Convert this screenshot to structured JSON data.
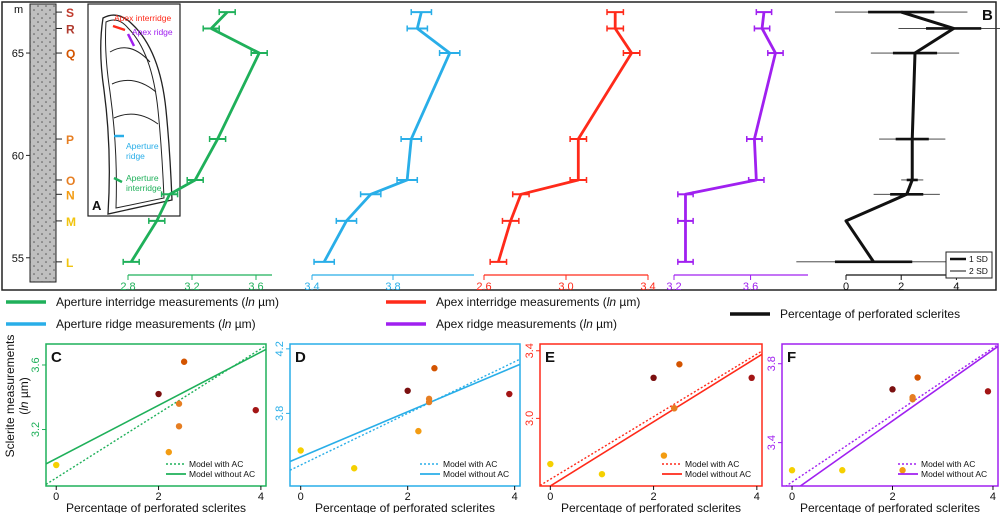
{
  "figure": {
    "panel_letters": {
      "A": "A",
      "B": "B",
      "C": "C",
      "D": "D",
      "E": "E",
      "F": "F"
    }
  },
  "strat": {
    "unit_label": "m",
    "height_ticks": [
      55,
      60,
      65
    ],
    "beds": [
      {
        "label": "S",
        "height": 67.0,
        "color": "#c0392b"
      },
      {
        "label": "R",
        "height": 66.2,
        "color": "#b03a2e"
      },
      {
        "label": "Q",
        "height": 65.0,
        "color": "#d35400"
      },
      {
        "label": "P",
        "height": 60.8,
        "color": "#e67e22"
      },
      {
        "label": "O",
        "height": 58.8,
        "color": "#e67e22"
      },
      {
        "label": "N",
        "height": 58.1,
        "color": "#f39c12"
      },
      {
        "label": "M",
        "height": 56.8,
        "color": "#f1c40f"
      },
      {
        "label": "L",
        "height": 54.8,
        "color": "#f1c40f"
      }
    ]
  },
  "panel_a": {
    "labels": {
      "apex_interridge": "Apex interridge",
      "apex_ridge": "Apex ridge",
      "aperture_ridge": "Aperture ridge",
      "aperture_interridge": "Aperture interridge"
    },
    "colors": {
      "apex_interridge": "#ff2a1a",
      "apex_ridge": "#a020f0",
      "aperture_ridge": "#29aee8",
      "aperture_interridge": "#1fb05a"
    }
  },
  "chart_data": [
    {
      "type": "line",
      "name": "Aperture interridge measurements",
      "color": "#1fb05a",
      "xlim": [
        2.8,
        3.7
      ],
      "xticks": [
        2.8,
        3.2,
        3.6
      ],
      "heights": [
        67.0,
        66.2,
        65.0,
        60.8,
        58.8,
        58.1,
        56.8,
        54.8
      ],
      "values": [
        3.42,
        3.32,
        3.62,
        3.36,
        3.22,
        3.06,
        2.98,
        2.82
      ],
      "errors": [
        0.05,
        0.05,
        0.05,
        0.05,
        0.05,
        0.05,
        0.05,
        0.05
      ]
    },
    {
      "type": "line",
      "name": "Aperture ridge measurements",
      "color": "#29aee8",
      "xlim": [
        3.4,
        4.2
      ],
      "xticks": [
        3.4,
        3.8
      ],
      "heights": [
        67.0,
        66.2,
        65.0,
        60.8,
        58.8,
        58.1,
        56.8,
        54.8
      ],
      "values": [
        3.94,
        3.92,
        4.08,
        3.89,
        3.87,
        3.69,
        3.57,
        3.46
      ],
      "errors": [
        0.05,
        0.05,
        0.05,
        0.05,
        0.05,
        0.05,
        0.05,
        0.05
      ]
    },
    {
      "type": "line",
      "name": "Apex interridge measurements",
      "color": "#ff2a1a",
      "xlim": [
        2.6,
        3.4
      ],
      "xticks": [
        2.6,
        3.0,
        3.4
      ],
      "heights": [
        67.0,
        66.2,
        65.0,
        60.8,
        58.8,
        58.1,
        56.8,
        54.8
      ],
      "values": [
        3.24,
        3.24,
        3.32,
        3.06,
        3.06,
        2.78,
        2.73,
        2.67
      ],
      "errors": [
        0.04,
        0.04,
        0.04,
        0.04,
        0.04,
        0.04,
        0.04,
        0.04
      ]
    },
    {
      "type": "line",
      "name": "Apex ridge measurements",
      "color": "#a020f0",
      "xlim": [
        3.2,
        3.9
      ],
      "xticks": [
        3.2,
        3.6
      ],
      "heights": [
        67.0,
        66.2,
        65.0,
        60.8,
        58.8,
        58.1,
        56.8,
        54.8
      ],
      "values": [
        3.67,
        3.66,
        3.73,
        3.62,
        3.63,
        3.26,
        3.26,
        3.26
      ],
      "errors": [
        0.04,
        0.04,
        0.04,
        0.04,
        0.04,
        0.04,
        0.04,
        0.04
      ]
    },
    {
      "type": "line",
      "name": "Percentage of perforated sclerites",
      "color": "#111111",
      "xlim": [
        0,
        5
      ],
      "xticks": [
        0,
        2,
        4
      ],
      "heights": [
        67.0,
        66.2,
        65.0,
        60.8,
        58.8,
        58.1,
        56.8,
        54.8
      ],
      "values": [
        2.0,
        3.9,
        2.5,
        2.4,
        2.4,
        2.2,
        0.0,
        1.0
      ],
      "sd1": [
        1.2,
        1.0,
        0.8,
        0.6,
        0.2,
        0.6,
        0.0,
        1.4
      ],
      "sd2": [
        2.4,
        2.0,
        1.6,
        1.2,
        0.4,
        1.2,
        0.0,
        2.8
      ]
    },
    {
      "type": "scatter",
      "panel": "C",
      "color": "#1fb05a",
      "xlabel": "Percentage of perforated sclerites",
      "xlim": [
        -0.2,
        4.1
      ],
      "ylim": [
        2.85,
        3.73
      ],
      "yticks": [
        3.2,
        3.6
      ],
      "points": [
        {
          "x": 2.0,
          "y": 3.42,
          "color": "#7b1010"
        },
        {
          "x": 3.9,
          "y": 3.32,
          "color": "#a31515"
        },
        {
          "x": 2.5,
          "y": 3.62,
          "color": "#d35400"
        },
        {
          "x": 2.4,
          "y": 3.36,
          "color": "#e67e22"
        },
        {
          "x": 2.4,
          "y": 3.22,
          "color": "#e67e22"
        },
        {
          "x": 2.2,
          "y": 3.06,
          "color": "#f39c12"
        },
        {
          "x": 0.0,
          "y": 2.98,
          "color": "#f5d000"
        },
        {
          "x": 1.0,
          "y": 2.82,
          "color": "#f5d000"
        }
      ],
      "fit_with_ac": {
        "intercept": 2.9,
        "slope": 0.2
      },
      "fit_without_ac": {
        "intercept": 3.02,
        "slope": 0.165
      },
      "legend": [
        "Model with AC",
        "Model without AC"
      ]
    },
    {
      "type": "scatter",
      "panel": "D",
      "color": "#29aee8",
      "xlabel": "Percentage of perforated sclerites",
      "xlim": [
        -0.2,
        4.1
      ],
      "ylim": [
        3.35,
        4.23
      ],
      "yticks": [
        3.8,
        4.2
      ],
      "points": [
        {
          "x": 2.0,
          "y": 3.94,
          "color": "#7b1010"
        },
        {
          "x": 3.9,
          "y": 3.92,
          "color": "#a31515"
        },
        {
          "x": 2.5,
          "y": 4.08,
          "color": "#d35400"
        },
        {
          "x": 2.4,
          "y": 3.89,
          "color": "#e67e22"
        },
        {
          "x": 2.4,
          "y": 3.87,
          "color": "#e67e22"
        },
        {
          "x": 2.2,
          "y": 3.69,
          "color": "#f39c12"
        },
        {
          "x": 0.0,
          "y": 3.57,
          "color": "#f5d000"
        },
        {
          "x": 1.0,
          "y": 3.46,
          "color": "#f5d000"
        }
      ],
      "fit_with_ac": {
        "intercept": 3.48,
        "slope": 0.16
      },
      "fit_without_ac": {
        "intercept": 3.53,
        "slope": 0.14
      },
      "legend": [
        "Model with AC",
        "Model without AC"
      ]
    },
    {
      "type": "scatter",
      "panel": "E",
      "color": "#ff2a1a",
      "xlabel": "Percentage of perforated sclerites",
      "xlim": [
        -0.2,
        4.1
      ],
      "ylim": [
        2.6,
        3.44
      ],
      "yticks": [
        3.0,
        3.4
      ],
      "points": [
        {
          "x": 2.0,
          "y": 3.24,
          "color": "#7b1010"
        },
        {
          "x": 3.9,
          "y": 3.24,
          "color": "#a31515"
        },
        {
          "x": 2.5,
          "y": 3.32,
          "color": "#d35400"
        },
        {
          "x": 2.4,
          "y": 3.06,
          "color": "#e67e22"
        },
        {
          "x": 2.4,
          "y": 3.06,
          "color": "#e67e22"
        },
        {
          "x": 2.2,
          "y": 2.78,
          "color": "#f39c12"
        },
        {
          "x": 0.0,
          "y": 2.73,
          "color": "#f5d000"
        },
        {
          "x": 1.0,
          "y": 2.67,
          "color": "#f5d000"
        }
      ],
      "fit_with_ac": {
        "intercept": 2.64,
        "slope": 0.185
      },
      "fit_without_ac": {
        "intercept": 2.6,
        "slope": 0.19
      },
      "legend": [
        "Model with AC",
        "Model without AC"
      ]
    },
    {
      "type": "scatter",
      "panel": "F",
      "color": "#a020f0",
      "xlabel": "Percentage of perforated sclerites",
      "xlim": [
        -0.2,
        4.1
      ],
      "ylim": [
        3.18,
        3.9
      ],
      "yticks": [
        3.4,
        3.8
      ],
      "points": [
        {
          "x": 2.0,
          "y": 3.67,
          "color": "#7b1010"
        },
        {
          "x": 3.9,
          "y": 3.66,
          "color": "#a31515"
        },
        {
          "x": 2.5,
          "y": 3.73,
          "color": "#d35400"
        },
        {
          "x": 2.4,
          "y": 3.62,
          "color": "#e67e22"
        },
        {
          "x": 2.4,
          "y": 3.63,
          "color": "#e67e22"
        },
        {
          "x": 2.2,
          "y": 3.26,
          "color": "#f39c12"
        },
        {
          "x": 0.0,
          "y": 3.26,
          "color": "#f5d000"
        },
        {
          "x": 1.0,
          "y": 3.26,
          "color": "#f5d000"
        }
      ],
      "fit_with_ac": {
        "intercept": 3.2,
        "slope": 0.17
      },
      "fit_without_ac": {
        "intercept": 3.15,
        "slope": 0.18
      },
      "legend": [
        "Model with AC",
        "Model without AC"
      ]
    }
  ],
  "legend": {
    "items": [
      {
        "text": "Aperture interridge measurements (",
        "italic": "ln",
        "unit": " µm)",
        "color": "#1fb05a"
      },
      {
        "text": "Aperture ridge measurements (",
        "italic": "ln",
        "unit": " µm)",
        "color": "#29aee8"
      },
      {
        "text": "Apex interridge measurements (",
        "italic": "ln",
        "unit": " µm)",
        "color": "#ff2a1a"
      },
      {
        "text": "Apex ridge measurements (",
        "italic": "ln",
        "unit": " µm)",
        "color": "#a020f0"
      },
      {
        "text": "Percentage of perforated sclerites",
        "italic": "",
        "unit": "",
        "color": "#111111"
      }
    ],
    "sd_items": [
      "1 SD",
      "2 SD"
    ]
  },
  "scatter_ylabel": {
    "line1": "Sclerite measurements",
    "line2_pre": "(",
    "line2_italic": "ln",
    "line2_post": " µm)"
  }
}
